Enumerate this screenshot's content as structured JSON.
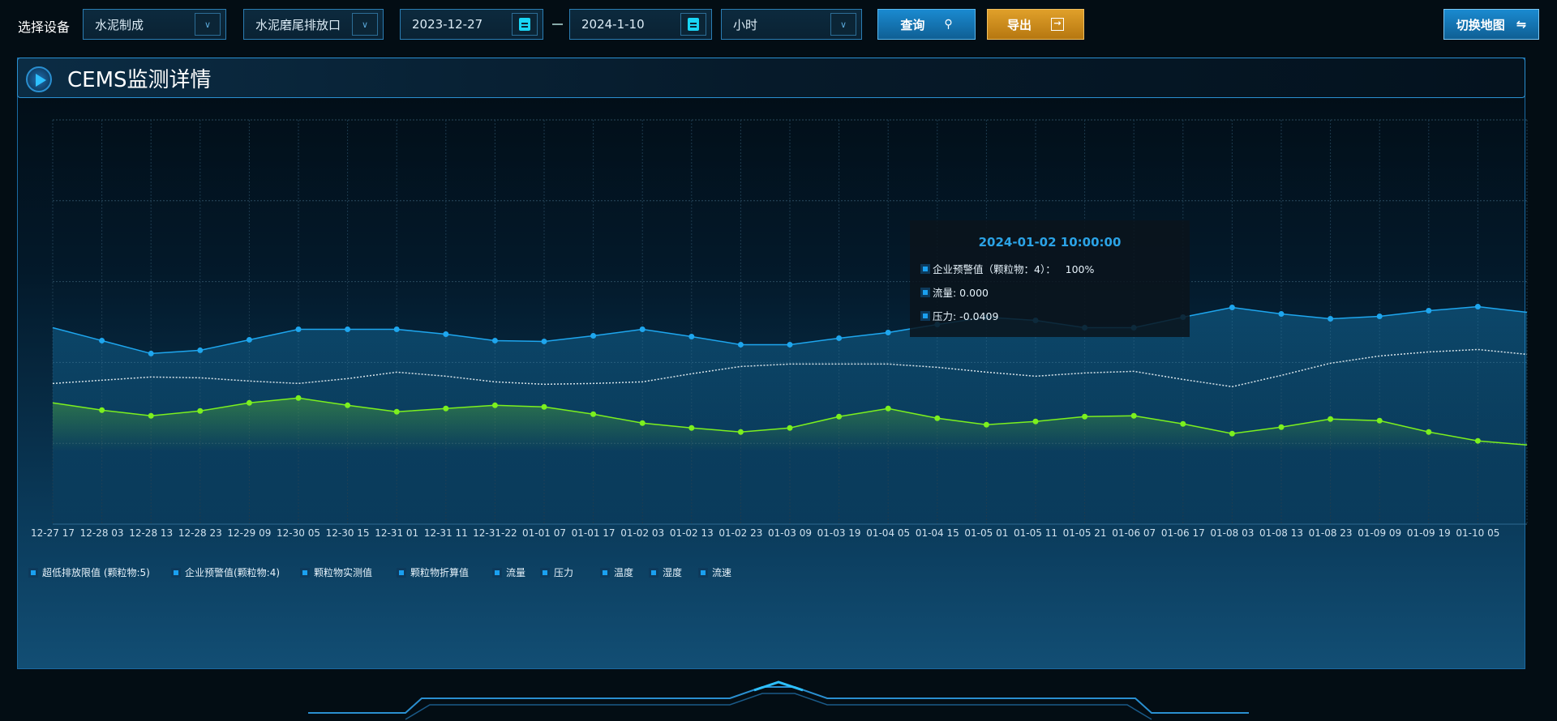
{
  "toolbar": {
    "device_label": "选择设备",
    "company": "水泥制成",
    "outlet": "水泥磨尾排放口",
    "start_date": "2023-12-27",
    "end_date": "2024-1-10",
    "granularity": "小时",
    "query_label": "查询",
    "export_label": "导出",
    "switch_map_label": "切换地图",
    "export_color": "#c9891a",
    "query_color": "#1677b8"
  },
  "panel": {
    "title": "CEMS监测详情"
  },
  "tooltip": {
    "time": "2024-01-02 10:00:00",
    "rows": [
      "企业预警值（颗粒物：4）：   100%",
      "流量: 0.000",
      "压力: -0.0409"
    ]
  },
  "legend": [
    "超低排放限值 (颗粒物:5)",
    "企业预警值(颗粒物:4)",
    "颗粒物实测值",
    "颗粒物折算值",
    "流量",
    "压力",
    "温度",
    "湿度",
    "流速"
  ],
  "chart_data": {
    "type": "line",
    "grid": true,
    "ylim": [
      0,
      5
    ],
    "legend_position": "bottom-left",
    "categories": [
      "12-27 17",
      "12-28 03",
      "12-28 13",
      "12-28 23",
      "12-29 09",
      "12-30 05",
      "12-30 15",
      "12-31 01",
      "12-31 11",
      "12-31-22",
      "01-01 07",
      "01-01 17",
      "01-02 03",
      "01-02 13",
      "01-02 23",
      "01-03 09",
      "01-03 19",
      "01-04 05",
      "01-04 15",
      "01-05 01",
      "01-05 11",
      "01-05 21",
      "01-06 07",
      "01-06 17",
      "01-08 03",
      "01-08 13",
      "01-08 23",
      "01-09 09",
      "01-09 19",
      "01-10 05",
      ""
    ],
    "series": [
      {
        "color": "#1ea6ee",
        "style": "area",
        "values": [
          2.43,
          2.27,
          2.11,
          2.15,
          2.28,
          2.41,
          2.41,
          2.41,
          2.35,
          2.27,
          2.26,
          2.33,
          2.41,
          2.32,
          2.22,
          2.22,
          2.3,
          2.37,
          2.47,
          2.56,
          2.52,
          2.43,
          2.43,
          2.56,
          2.68,
          2.6,
          2.54,
          2.57,
          2.64,
          2.69,
          2.62
        ]
      },
      {
        "color": "#d8e4ea",
        "style": "dotted",
        "values": [
          1.74,
          1.78,
          1.82,
          1.81,
          1.77,
          1.74,
          1.8,
          1.88,
          1.83,
          1.76,
          1.73,
          1.74,
          1.76,
          1.86,
          1.95,
          1.98,
          1.98,
          1.98,
          1.94,
          1.88,
          1.83,
          1.87,
          1.89,
          1.79,
          1.7,
          1.84,
          1.99,
          2.08,
          2.13,
          2.16,
          2.1
        ]
      },
      {
        "color": "#7cf01e",
        "style": "area",
        "values": [
          1.5,
          1.41,
          1.34,
          1.4,
          1.5,
          1.56,
          1.47,
          1.39,
          1.43,
          1.47,
          1.45,
          1.36,
          1.25,
          1.19,
          1.14,
          1.19,
          1.33,
          1.43,
          1.31,
          1.23,
          1.27,
          1.33,
          1.34,
          1.24,
          1.12,
          1.2,
          1.3,
          1.28,
          1.14,
          1.03,
          0.98
        ]
      }
    ]
  }
}
